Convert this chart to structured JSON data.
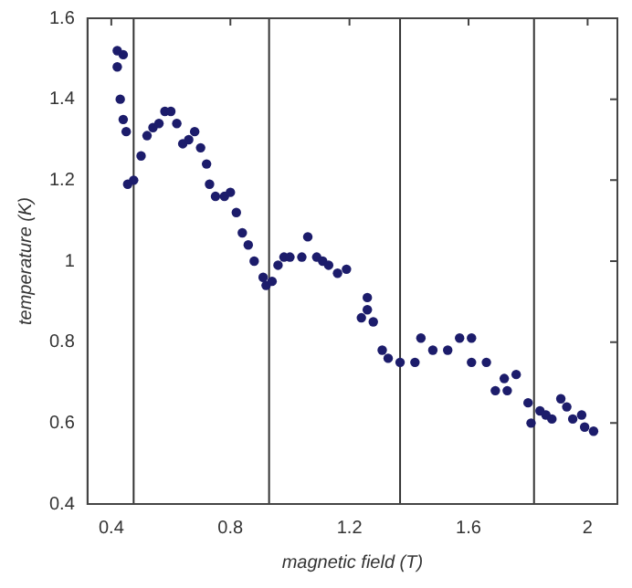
{
  "chart_data": {
    "type": "scatter",
    "xlabel": "magnetic field (T)",
    "ylabel": "temperature (K)",
    "xlim": [
      0.32,
      2.1
    ],
    "xticks": [
      0.4,
      0.8,
      1.2,
      1.6,
      2
    ],
    "ylim": [
      0.4,
      1.6
    ],
    "yticks": [
      0.4,
      0.6,
      0.8,
      1,
      1.2,
      1.4,
      1.6
    ],
    "grid": false,
    "legend": false,
    "marker": "circle",
    "ref_lines": [
      {
        "axis": "x",
        "value": 0.475,
        "color": "#333333"
      },
      {
        "axis": "x",
        "value": 0.93,
        "color": "#333333"
      },
      {
        "axis": "x",
        "value": 1.37,
        "color": "#333333"
      },
      {
        "axis": "x",
        "value": 1.82,
        "color": "#333333"
      }
    ],
    "series": [
      {
        "color": "#1c1c6b",
        "x": [
          0.42,
          0.44,
          0.42,
          0.43,
          0.44,
          0.45,
          0.455,
          0.475,
          0.5,
          0.52,
          0.54,
          0.56,
          0.58,
          0.6,
          0.62,
          0.64,
          0.66,
          0.68,
          0.7,
          0.72,
          0.73,
          0.75,
          0.78,
          0.8,
          0.82,
          0.84,
          0.86,
          0.88,
          0.91,
          0.92,
          0.94,
          0.96,
          0.98,
          1.0,
          1.04,
          1.06,
          1.09,
          1.11,
          1.13,
          1.16,
          1.19,
          1.24,
          1.26,
          1.26,
          1.28,
          1.31,
          1.33,
          1.37,
          1.42,
          1.44,
          1.48,
          1.53,
          1.57,
          1.61,
          1.61,
          1.66,
          1.69,
          1.72,
          1.73,
          1.76,
          1.8,
          1.81,
          1.84,
          1.86,
          1.88,
          1.91,
          1.93,
          1.95,
          1.98,
          1.99,
          2.02
        ],
        "values": [
          1.52,
          1.51,
          1.48,
          1.4,
          1.35,
          1.32,
          1.19,
          1.2,
          1.26,
          1.31,
          1.33,
          1.34,
          1.37,
          1.37,
          1.34,
          1.29,
          1.3,
          1.32,
          1.28,
          1.24,
          1.19,
          1.16,
          1.16,
          1.17,
          1.12,
          1.07,
          1.04,
          1.0,
          0.96,
          0.94,
          0.95,
          0.99,
          1.01,
          1.01,
          1.01,
          1.06,
          1.01,
          1.0,
          0.99,
          0.97,
          0.98,
          0.86,
          0.91,
          0.88,
          0.85,
          0.78,
          0.76,
          0.75,
          0.75,
          0.81,
          0.78,
          0.78,
          0.81,
          0.81,
          0.75,
          0.75,
          0.68,
          0.71,
          0.68,
          0.72,
          0.65,
          0.6,
          0.63,
          0.62,
          0.61,
          0.66,
          0.64,
          0.61,
          0.62,
          0.59,
          0.58
        ]
      }
    ]
  }
}
